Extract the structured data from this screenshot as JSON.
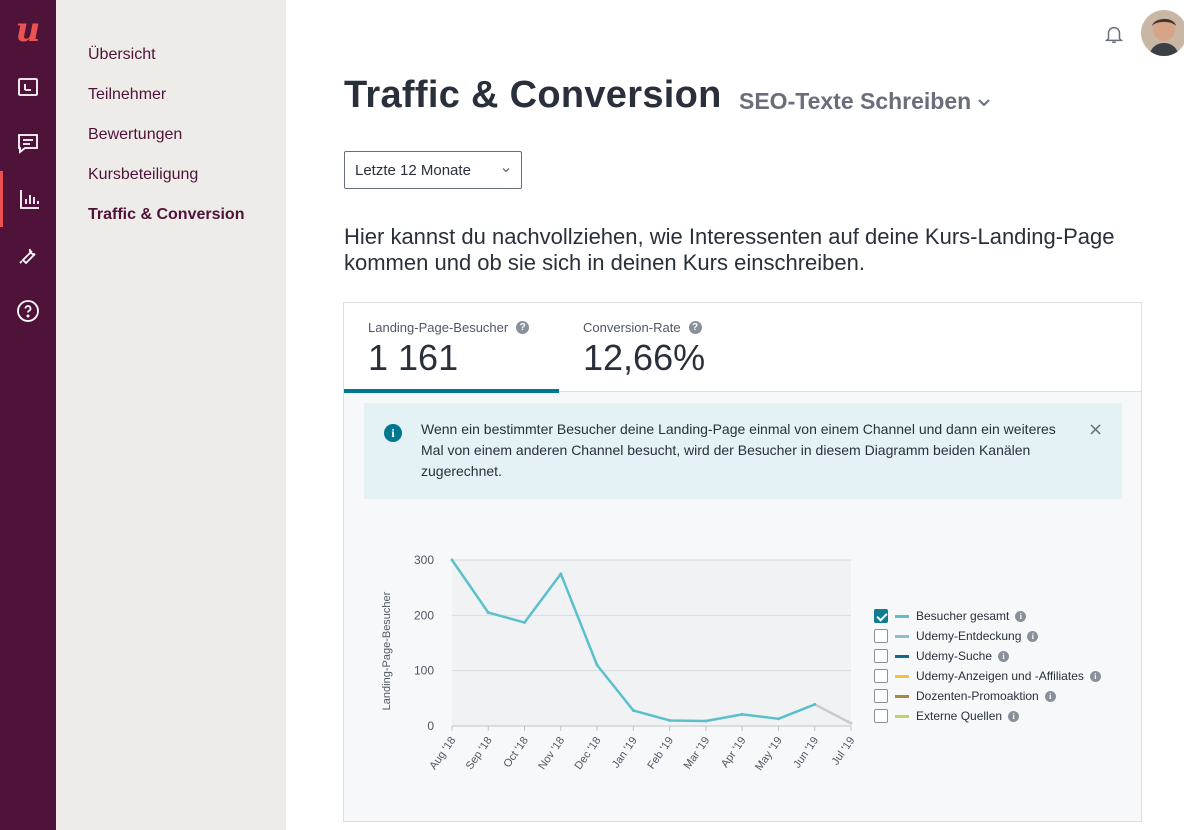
{
  "rail": {
    "logo": "u",
    "items": [
      {
        "icon": "courses-icon"
      },
      {
        "icon": "messages-icon"
      },
      {
        "icon": "performance-chart-icon",
        "active": true
      },
      {
        "icon": "tools-icon"
      },
      {
        "icon": "help-icon"
      }
    ]
  },
  "subnav": {
    "items": [
      {
        "label": "Übersicht"
      },
      {
        "label": "Teilnehmer"
      },
      {
        "label": "Bewertungen"
      },
      {
        "label": "Kursbeteiligung"
      },
      {
        "label": "Traffic & Conversion",
        "active": true
      }
    ]
  },
  "header": {
    "title": "Traffic & Conversion",
    "course": "SEO-Texte Schreiben"
  },
  "filter": {
    "period": "Letzte 12 Monate"
  },
  "intro": "Hier kannst du nachvollziehen, wie Interessenten auf deine Kurs-Landing-Page kommen und ob sie sich in deinen Kurs einschreiben.",
  "metrics": [
    {
      "label": "Landing-Page-Besucher",
      "value": "1 161",
      "active": true
    },
    {
      "label": "Conversion-Rate",
      "value": "12,66%"
    }
  ],
  "notice": {
    "text": "Wenn ein bestimmter Besucher deine Landing-Page einmal von einem Channel und dann ein weiteres Mal von einem anderen Channel besucht, wird der Besucher in diesem Diagramm beiden Kanälen zugerechnet.",
    "close": "×"
  },
  "legend": [
    {
      "label": "Besucher gesamt",
      "checked": true,
      "color": "#5bc0cc"
    },
    {
      "label": "Udemy-Entdeckung",
      "checked": false,
      "color": "#8fbfcc"
    },
    {
      "label": "Udemy-Suche",
      "checked": false,
      "color": "#0f6a86"
    },
    {
      "label": "Udemy-Anzeigen und -Affiliates",
      "checked": false,
      "color": "#f4c142"
    },
    {
      "label": "Dozenten-Promoaktion",
      "checked": false,
      "color": "#a88a3a"
    },
    {
      "label": "Externe Quellen",
      "checked": false,
      "color": "#c2cf6a"
    }
  ],
  "chart_data": {
    "type": "line",
    "ylabel": "Landing-Page-Besucher",
    "xlabel": "",
    "ylim": [
      0,
      300
    ],
    "yticks": [
      0,
      100,
      200,
      300
    ],
    "categories": [
      "Aug '18",
      "Sep '18",
      "Oct '18",
      "Nov '18",
      "Dec '18",
      "Jan '19",
      "Feb '19",
      "Mar '19",
      "Apr '19",
      "May '19",
      "Jun '19",
      "Jul '19"
    ],
    "series": [
      {
        "name": "Besucher gesamt",
        "values": [
          300,
          205,
          187,
          275,
          110,
          28,
          10,
          9,
          21,
          13,
          39,
          5
        ],
        "color": "#5bc0cc",
        "partial_last_color": "#c8ccd0"
      }
    ],
    "grid": true
  }
}
